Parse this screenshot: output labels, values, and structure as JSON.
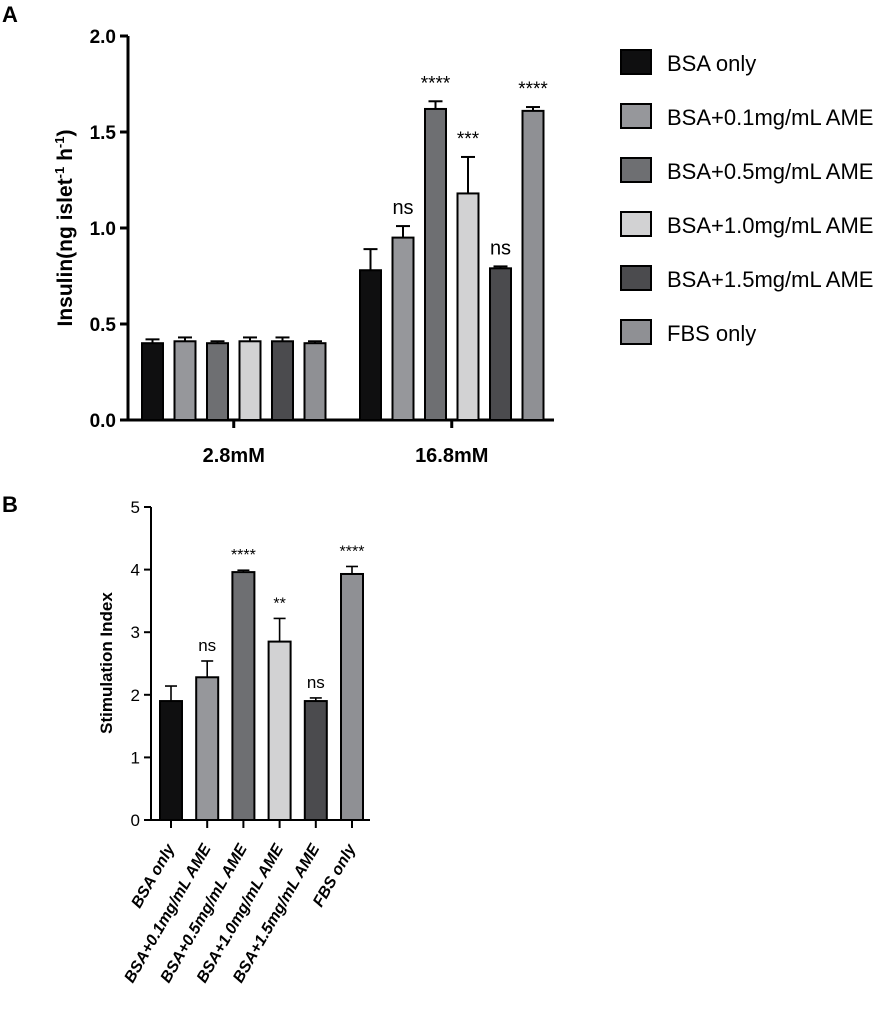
{
  "panels": {
    "a_label": "A",
    "b_label": "B"
  },
  "legend": [
    {
      "label": "BSA only",
      "color": "#0f0f10"
    },
    {
      "label": "BSA+0.1mg/mL AME",
      "color": "#96979b"
    },
    {
      "label": "BSA+0.5mg/mL AME",
      "color": "#6e6f72"
    },
    {
      "label": "BSA+1.0mg/mL AME",
      "color": "#d2d2d3"
    },
    {
      "label": "BSA+1.5mg/mL AME",
      "color": "#4b4b4e"
    },
    {
      "label": "FBS only",
      "color": "#8f9094"
    }
  ],
  "chart_data": [
    {
      "panel": "A",
      "type": "bar",
      "ylabel_main": "Insulin(ng islet",
      "ylabel_sup1": "-1",
      "ylabel_mid": " h",
      "ylabel_sup2": "-1",
      "ylabel_end": ")",
      "ylim": [
        0,
        2.0
      ],
      "yticks": [
        "0.0",
        "0.5",
        "1.0",
        "1.5",
        "2.0"
      ],
      "categories": [
        "2.8mM",
        "16.8mM"
      ],
      "legend_position": "right",
      "series": [
        {
          "name": "BSA only",
          "values": [
            0.4,
            0.78
          ],
          "errors": [
            0.02,
            0.11
          ],
          "annotations": [
            "",
            ""
          ]
        },
        {
          "name": "BSA+0.1mg/mL AME",
          "values": [
            0.41,
            0.95
          ],
          "errors": [
            0.02,
            0.06
          ],
          "annotations": [
            "",
            "ns"
          ]
        },
        {
          "name": "BSA+0.5mg/mL AME",
          "values": [
            0.4,
            1.62
          ],
          "errors": [
            0.01,
            0.04
          ],
          "annotations": [
            "",
            "****"
          ]
        },
        {
          "name": "BSA+1.0mg/mL AME",
          "values": [
            0.41,
            1.18
          ],
          "errors": [
            0.02,
            0.19
          ],
          "annotations": [
            "",
            "***"
          ]
        },
        {
          "name": "BSA+1.5mg/mL AME",
          "values": [
            0.41,
            0.79
          ],
          "errors": [
            0.02,
            0.01
          ],
          "annotations": [
            "",
            "ns"
          ]
        },
        {
          "name": "FBS only",
          "values": [
            0.4,
            1.61
          ],
          "errors": [
            0.01,
            0.02
          ],
          "annotations": [
            "",
            "****"
          ]
        }
      ]
    },
    {
      "panel": "B",
      "type": "bar",
      "ylabel": "Stimulation Index",
      "ylim": [
        0,
        5
      ],
      "yticks": [
        "0",
        "1",
        "2",
        "3",
        "4",
        "5"
      ],
      "categories": [
        "BSA only",
        "BSA+0.1mg/mL AME",
        "BSA+0.5mg/mL AME",
        "BSA+1.0mg/mL AME",
        "BSA+1.5mg/mL AME",
        "FBS only"
      ],
      "values": [
        1.9,
        2.28,
        3.96,
        2.85,
        1.9,
        3.93
      ],
      "errors": [
        0.24,
        0.26,
        0.03,
        0.37,
        0.05,
        0.12
      ],
      "annotations": [
        "",
        "ns",
        "****",
        "**",
        "ns",
        "****"
      ]
    }
  ]
}
